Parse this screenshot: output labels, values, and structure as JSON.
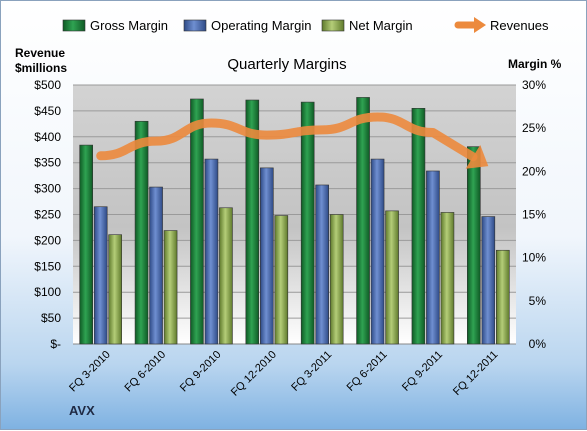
{
  "chart_data": {
    "type": "bar",
    "title": "Quarterly Margins",
    "categories": [
      "FQ 3-2010",
      "FQ 6-2010",
      "FQ 9-2010",
      "FQ 12-2010",
      "FQ 3-2011",
      "FQ 6-2011",
      "FQ 9-2011",
      "FQ 12-2011"
    ],
    "series": [
      {
        "name": "Gross Margin",
        "values": [
          384,
          430,
          473,
          471,
          467,
          476,
          455,
          381
        ],
        "color": "#1e8a3c"
      },
      {
        "name": "Operating Margin",
        "values": [
          265,
          303,
          357,
          340,
          307,
          357,
          334,
          246
        ],
        "color": "#4a6ab4"
      },
      {
        "name": "Net Margin",
        "values": [
          211,
          219,
          263,
          248,
          250,
          257,
          254,
          181
        ],
        "color": "#8fae4e"
      }
    ],
    "line_series": {
      "name": "Revenues",
      "axis": "right",
      "values": [
        21.8,
        23.5,
        25.6,
        24.2,
        24.8,
        26.3,
        24.5,
        20.6
      ],
      "color": "#ec8a3d"
    },
    "ylabel_left": "Revenue\n$millions",
    "ylabel_right": "Margin %",
    "ylim_left": [
      0,
      500
    ],
    "ylim_right": [
      0,
      30
    ],
    "yticks_left": [
      "$-",
      "$50",
      "$100",
      "$150",
      "$200",
      "$250",
      "$300",
      "$350",
      "$400",
      "$450",
      "$500"
    ],
    "yticks_right": [
      "0%",
      "5%",
      "10%",
      "15%",
      "20%",
      "25%",
      "30%"
    ],
    "grid": true,
    "legend_position": "top"
  },
  "footer": {
    "company": "AVX"
  }
}
